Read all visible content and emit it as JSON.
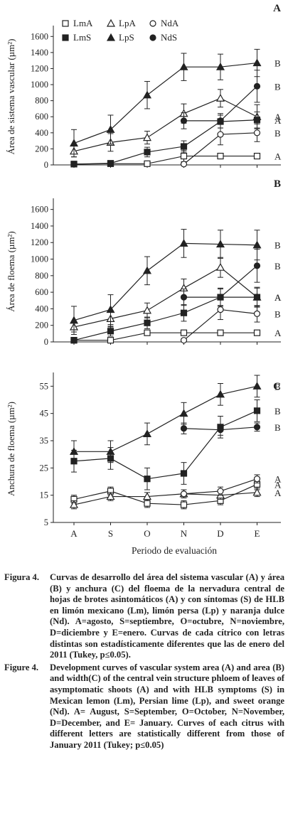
{
  "chart_data": [
    {
      "type": "line",
      "panel_letter": "A",
      "ylabel": "Área de sistema vascular (µm²)",
      "ylim": [
        0,
        1700
      ],
      "yticks": [
        "0",
        "200",
        "400",
        "600",
        "800",
        "1000",
        "1200",
        "1400",
        "1600"
      ],
      "categories": [
        "A",
        "S",
        "O",
        "N",
        "D",
        "E"
      ],
      "legend": [
        {
          "key": "LmA",
          "marker": "square-open"
        },
        {
          "key": "LpA",
          "marker": "triangle-open"
        },
        {
          "key": "NdA",
          "marker": "circle-open"
        },
        {
          "key": "LmS",
          "marker": "square-filled"
        },
        {
          "key": "LpS",
          "marker": "triangle-filled"
        },
        {
          "key": "NdS",
          "marker": "circle-filled"
        }
      ],
      "series": [
        {
          "name": "LmA",
          "marker": "square-open",
          "values": [
            10,
            15,
            15,
            110,
            110,
            110
          ],
          "errors": [
            0,
            0,
            0,
            70,
            0,
            0
          ]
        },
        {
          "name": "LpA",
          "marker": "triangle-open",
          "values": [
            170,
            280,
            340,
            640,
            830,
            600
          ],
          "errors": [
            70,
            110,
            80,
            120,
            110,
            150
          ]
        },
        {
          "name": "NdA",
          "marker": "circle-open",
          "values": [
            null,
            null,
            null,
            10,
            380,
            400
          ],
          "errors": [
            0,
            0,
            0,
            0,
            130,
            110
          ]
        },
        {
          "name": "LmS",
          "marker": "square-filled",
          "values": [
            10,
            20,
            160,
            230,
            540,
            560
          ],
          "errors": [
            0,
            0,
            60,
            70,
            80,
            100
          ]
        },
        {
          "name": "LpS",
          "marker": "triangle-filled",
          "values": [
            270,
            440,
            870,
            1220,
            1220,
            1270
          ],
          "errors": [
            170,
            180,
            170,
            170,
            160,
            170
          ]
        },
        {
          "name": "NdS",
          "marker": "circle-filled",
          "values": [
            null,
            null,
            null,
            550,
            550,
            980
          ],
          "errors": [
            0,
            0,
            0,
            100,
            90,
            200
          ]
        }
      ],
      "group_labels": [
        "A",
        "A",
        "B",
        "A",
        "B",
        "B"
      ]
    },
    {
      "type": "line",
      "panel_letter": "B",
      "ylabel": "Área de floema (µm²)",
      "ylim": [
        0,
        1700
      ],
      "yticks": [
        "0",
        "200",
        "400",
        "600",
        "800",
        "1000",
        "1200",
        "1400",
        "1600"
      ],
      "categories": [
        "A",
        "S",
        "O",
        "N",
        "D",
        "E"
      ],
      "series": [
        {
          "name": "LmA",
          "marker": "square-open",
          "values": [
            20,
            20,
            110,
            110,
            110,
            110
          ],
          "errors": [
            0,
            0,
            0,
            0,
            0,
            0
          ]
        },
        {
          "name": "LpA",
          "marker": "triangle-open",
          "values": [
            180,
            280,
            380,
            650,
            900,
            540
          ],
          "errors": [
            60,
            100,
            90,
            110,
            120,
            120
          ]
        },
        {
          "name": "NdA",
          "marker": "circle-open",
          "values": [
            null,
            null,
            null,
            20,
            390,
            340
          ],
          "errors": [
            0,
            0,
            0,
            0,
            120,
            100
          ]
        },
        {
          "name": "LmS",
          "marker": "square-filled",
          "values": [
            20,
            130,
            230,
            350,
            540,
            540
          ],
          "errors": [
            0,
            60,
            70,
            100,
            110,
            110
          ]
        },
        {
          "name": "LpS",
          "marker": "triangle-filled",
          "values": [
            260,
            390,
            860,
            1190,
            1180,
            1170
          ],
          "errors": [
            170,
            180,
            170,
            170,
            170,
            180
          ]
        },
        {
          "name": "NdS",
          "marker": "circle-filled",
          "values": [
            null,
            null,
            null,
            540,
            540,
            920
          ],
          "errors": [
            0,
            0,
            0,
            100,
            100,
            200
          ]
        }
      ],
      "group_labels": [
        "A",
        "A",
        "B",
        "A",
        "B",
        "B"
      ]
    },
    {
      "type": "line",
      "panel_letter": "C",
      "ylabel": "Anchura de floema (µm²)",
      "ylim": [
        5,
        59
      ],
      "yticks": [
        "5",
        "15",
        "25",
        "35",
        "45",
        "55"
      ],
      "categories": [
        "A",
        "S",
        "O",
        "N",
        "D",
        "E"
      ],
      "xlabel": "Periodo de evaluación",
      "series": [
        {
          "name": "LmA",
          "marker": "square-open",
          "values": [
            13.5,
            16.5,
            12,
            11.5,
            13,
            19
          ],
          "errors": [
            1.5,
            1.5,
            1.5,
            1.5,
            1.5,
            2
          ]
        },
        {
          "name": "LpA",
          "marker": "triangle-open",
          "values": [
            11.5,
            14.5,
            14.5,
            15.5,
            15,
            16
          ],
          "errors": [
            1.5,
            1.5,
            1.5,
            1.5,
            1.5,
            1.5
          ]
        },
        {
          "name": "NdA",
          "marker": "circle-open",
          "values": [
            null,
            null,
            null,
            15.5,
            16.5,
            21
          ],
          "errors": [
            0,
            0,
            0,
            1.5,
            1.5,
            1.5
          ]
        },
        {
          "name": "LmS",
          "marker": "square-filled",
          "values": [
            27.5,
            28.5,
            21,
            23,
            40,
            46
          ],
          "errors": [
            4,
            4,
            4,
            4,
            4,
            4
          ]
        },
        {
          "name": "LpS",
          "marker": "triangle-filled",
          "values": [
            31,
            31,
            37.5,
            45,
            52,
            55
          ],
          "errors": [
            4,
            4,
            4,
            4,
            4,
            4
          ]
        },
        {
          "name": "NdS",
          "marker": "circle-filled",
          "values": [
            null,
            null,
            null,
            39.5,
            39,
            40
          ],
          "errors": [
            0,
            0,
            0,
            2,
            2,
            1.5
          ]
        }
      ],
      "group_labels": [
        "A",
        "A",
        "A",
        "B",
        "B",
        "B"
      ]
    }
  ],
  "captions": [
    {
      "label": "Figura 4.",
      "text": "Curvas de desarrollo del área del sistema vascular (A) y área (B) y anchura (C) del floema de la nervadura central de hojas de brotes asintomáticos (A) y con síntomas (S) de HLB en limón mexicano (Lm), limón persa (Lp) y naranja dulce (Nd). A=agosto, S=septiembre, O=octubre, N=noviembre, D=diciembre y E=enero. Curvas de cada cítrico con letras distintas son estadísticamente diferentes que las de enero del 2011 (Tukey, p≤0.05)."
    },
    {
      "label": "Figure 4.",
      "text": "Development curves of vascular system area (A) and area (B) and width(C) of the central vein structure phloem of leaves of asymptomatic shoots (A) and with HLB symptoms (S) in Mexican lemon (Lm), Persian lime (Lp), and sweet orange (Nd). A= August, S=September, O=October, N=November, D=December, and E= January. Curves of each citrus with different letters are statistically different from those of January 2011 (Tukey; p≤0.05)"
    }
  ],
  "colors": {
    "ink": "#222222",
    "background": "#ffffff"
  }
}
